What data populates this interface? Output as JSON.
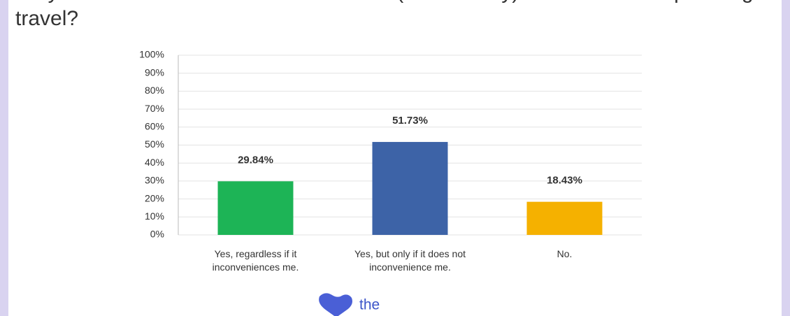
{
  "chart_data": {
    "type": "bar",
    "title": "Do you intend to make more sustainable (eco-friendly) decisions when planning travel?",
    "categories": [
      "Yes, regardless if it inconveniences me.",
      "Yes, but only if it does not inconvenience me.",
      "No."
    ],
    "values": [
      29.84,
      51.73,
      18.43
    ],
    "value_labels": [
      "29.84%",
      "51.73%",
      "18.43%"
    ],
    "colors": [
      "#1db456",
      "#3d63a7",
      "#f5b100"
    ],
    "ylim": [
      0,
      100
    ],
    "yticks": [
      {
        "value": 0,
        "label": "0%"
      },
      {
        "value": 10,
        "label": "10%"
      },
      {
        "value": 20,
        "label": "20%"
      },
      {
        "value": 30,
        "label": "30%"
      },
      {
        "value": 40,
        "label": "40%"
      },
      {
        "value": 50,
        "label": "50%"
      },
      {
        "value": 60,
        "label": "60%"
      },
      {
        "value": 70,
        "label": "70%"
      },
      {
        "value": 80,
        "label": "80%"
      },
      {
        "value": 90,
        "label": "90%"
      },
      {
        "value": 100,
        "label": "100%"
      }
    ],
    "grid": true,
    "logo": "the"
  }
}
